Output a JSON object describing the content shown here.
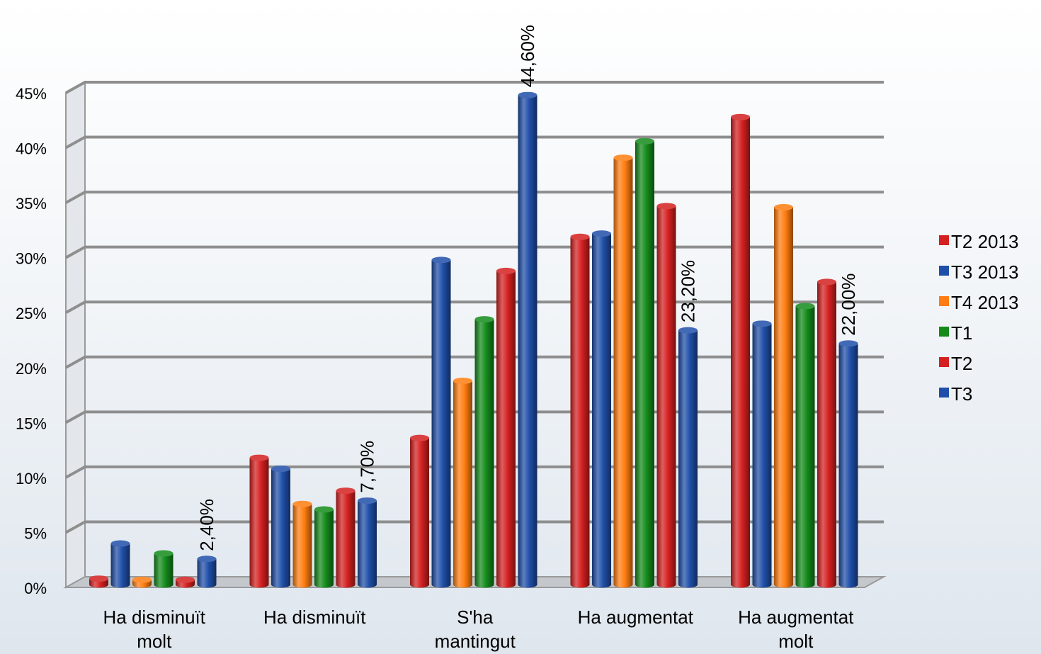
{
  "chart_data": {
    "type": "bar",
    "title": "",
    "xlabel": "",
    "ylabel": "",
    "ylim": [
      0,
      45
    ],
    "y_ticks": [
      "0%",
      "5%",
      "10%",
      "15%",
      "20%",
      "25%",
      "30%",
      "35%",
      "40%",
      "45%"
    ],
    "grid": true,
    "legend_position": "right",
    "categories": [
      [
        "Ha disminuït",
        "molt"
      ],
      [
        "Ha disminuït"
      ],
      [
        "S'ha",
        "mantingut"
      ],
      [
        "Ha augmentat"
      ],
      [
        "Ha augmentat",
        "molt"
      ]
    ],
    "series": [
      {
        "name": "T2 2013",
        "color": "#d42020",
        "values": [
          0.6,
          11.6,
          13.4,
          31.7,
          42.6
        ]
      },
      {
        "name": "T3 2013",
        "color": "#1f4fa8",
        "values": [
          3.8,
          10.6,
          29.6,
          32.0,
          23.8
        ]
      },
      {
        "name": "T4 2013",
        "color": "#ff7d10",
        "values": [
          0.5,
          7.4,
          18.6,
          38.9,
          34.4
        ]
      },
      {
        "name": "T1",
        "color": "#138a1a",
        "values": [
          2.9,
          6.9,
          24.2,
          40.4,
          25.4
        ]
      },
      {
        "name": "T2",
        "color": "#d42020",
        "values": [
          0.5,
          8.6,
          28.6,
          34.5,
          27.6
        ]
      },
      {
        "name": "T3",
        "color": "#1f4fa8",
        "values": [
          2.4,
          7.7,
          44.6,
          23.2,
          22.0
        ]
      }
    ],
    "data_labels": [
      {
        "series": 5,
        "category": 0,
        "text": "2,40%"
      },
      {
        "series": 5,
        "category": 1,
        "text": "7,70%"
      },
      {
        "series": 5,
        "category": 2,
        "text": "44,60%"
      },
      {
        "series": 5,
        "category": 3,
        "text": "23,20%"
      },
      {
        "series": 5,
        "category": 4,
        "text": "22,00%"
      }
    ]
  }
}
